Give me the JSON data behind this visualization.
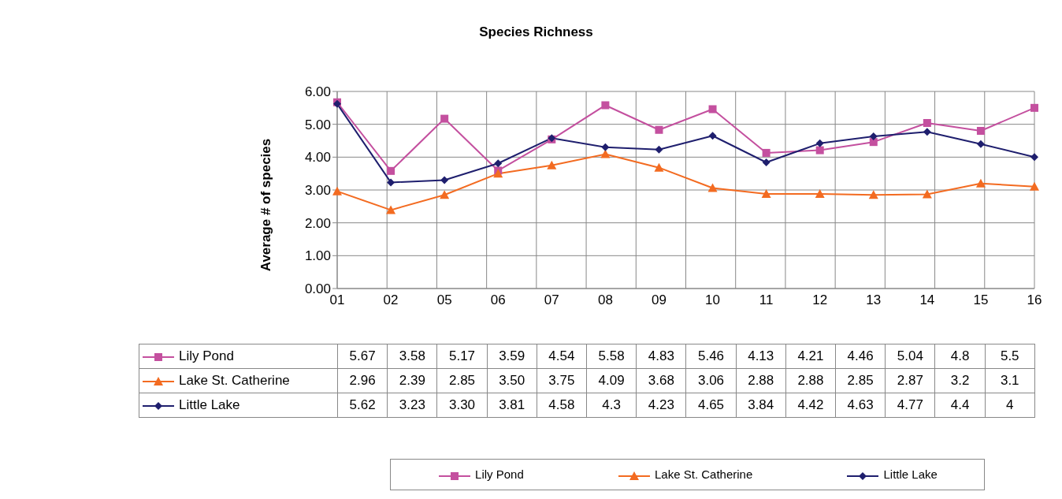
{
  "chart_data": {
    "type": "line",
    "title": "Species Richness",
    "ylabel": "Average # of species",
    "categories": [
      "01",
      "02",
      "05",
      "06",
      "07",
      "08",
      "09",
      "10",
      "11",
      "12",
      "13",
      "14",
      "15",
      "16"
    ],
    "series": [
      {
        "name": "Lily Pond",
        "color": "#c4509f",
        "marker": "square",
        "values": [
          5.67,
          3.58,
          5.17,
          3.59,
          4.54,
          5.58,
          4.83,
          5.46,
          4.13,
          4.21,
          4.46,
          5.04,
          4.8,
          5.5
        ],
        "value_labels": [
          "5.67",
          "3.58",
          "5.17",
          "3.59",
          "4.54",
          "5.58",
          "4.83",
          "5.46",
          "4.13",
          "4.21",
          "4.46",
          "5.04",
          "4.8",
          "5.5"
        ]
      },
      {
        "name": "Lake St. Catherine",
        "color": "#f36b21",
        "marker": "triangle",
        "values": [
          2.96,
          2.39,
          2.85,
          3.5,
          3.75,
          4.09,
          3.68,
          3.06,
          2.88,
          2.88,
          2.85,
          2.87,
          3.2,
          3.1
        ],
        "value_labels": [
          "2.96",
          "2.39",
          "2.85",
          "3.50",
          "3.75",
          "4.09",
          "3.68",
          "3.06",
          "2.88",
          "2.88",
          "2.85",
          "2.87",
          "3.2",
          "3.1"
        ]
      },
      {
        "name": "Little Lake",
        "color": "#1f1f6e",
        "marker": "diamond",
        "values": [
          5.62,
          3.23,
          3.3,
          3.81,
          4.58,
          4.3,
          4.23,
          4.65,
          3.84,
          4.42,
          4.63,
          4.77,
          4.4,
          4
        ],
        "value_labels": [
          "5.62",
          "3.23",
          "3.30",
          "3.81",
          "4.58",
          "4.3",
          "4.23",
          "4.65",
          "3.84",
          "4.42",
          "4.63",
          "4.77",
          "4.4",
          "4"
        ]
      }
    ],
    "ylim": [
      0,
      6
    ],
    "yticks": [
      {
        "value": 0,
        "label": "0.00"
      },
      {
        "value": 1,
        "label": "1.00"
      },
      {
        "value": 2,
        "label": "2.00"
      },
      {
        "value": 3,
        "label": "3.00"
      },
      {
        "value": 4,
        "label": "4.00"
      },
      {
        "value": 5,
        "label": "5.00"
      },
      {
        "value": 6,
        "label": "6.00"
      }
    ],
    "grid": true,
    "legend": "bottom"
  }
}
